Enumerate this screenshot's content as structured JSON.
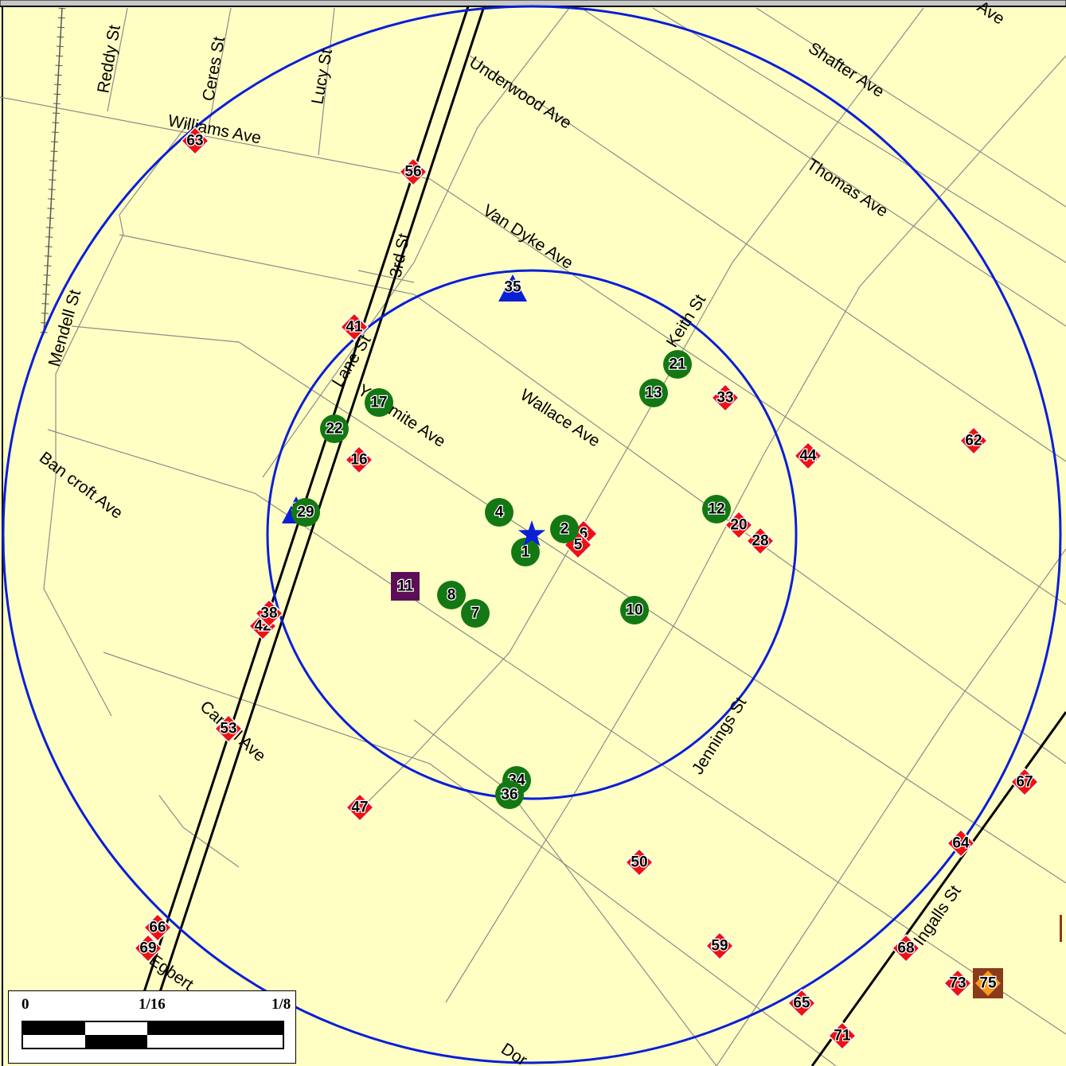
{
  "streets": {
    "reddy": "Reddy St",
    "ceres": "Ceres St",
    "lucy": "Lucy St",
    "williams": "Williams Ave",
    "underwood": "Underwood Ave",
    "shafter": "Shafter Ave",
    "ave_top": "Ave",
    "thomas": "Thomas Ave",
    "vandyke": "Van Dyke Ave",
    "third": "3rd St",
    "mendell": "Mendell St",
    "keith": "Keith St",
    "lane": "Lane St",
    "yosemite": "Yosemite Ave",
    "wallace": "Wallace Ave",
    "bancroft": "Ban croft Ave",
    "carroll": "Carroll Ave",
    "jennings": "Jennings St",
    "ingalls": "Ingalls St",
    "egbert": "Egbert",
    "dor": "Dor"
  },
  "markers": {
    "green": [
      {
        "n": "21",
        "color": "#137813"
      },
      {
        "n": "13",
        "color": "#137813"
      },
      {
        "n": "17",
        "color": "#137813"
      },
      {
        "n": "22",
        "color": "#137813"
      },
      {
        "n": "29",
        "color": "#137813"
      },
      {
        "n": "4",
        "color": "#137813"
      },
      {
        "n": "2",
        "color": "#137813"
      },
      {
        "n": "1",
        "color": "#137813"
      },
      {
        "n": "12",
        "color": "#137813"
      },
      {
        "n": "8",
        "color": "#137813"
      },
      {
        "n": "7",
        "color": "#137813"
      },
      {
        "n": "10",
        "color": "#137813"
      },
      {
        "n": "34",
        "color": "#137813"
      },
      {
        "n": "36",
        "color": "#137813"
      }
    ],
    "red": [
      {
        "n": "63"
      },
      {
        "n": "56"
      },
      {
        "n": "41"
      },
      {
        "n": "16"
      },
      {
        "n": "33"
      },
      {
        "n": "44"
      },
      {
        "n": "62"
      },
      {
        "n": "6"
      },
      {
        "n": "5"
      },
      {
        "n": "20"
      },
      {
        "n": "28"
      },
      {
        "n": "42"
      },
      {
        "n": "38"
      },
      {
        "n": "53"
      },
      {
        "n": "47"
      },
      {
        "n": "50"
      },
      {
        "n": "59"
      },
      {
        "n": "67"
      },
      {
        "n": "64"
      },
      {
        "n": "68"
      },
      {
        "n": "66"
      },
      {
        "n": "69"
      },
      {
        "n": "65"
      },
      {
        "n": "71"
      },
      {
        "n": "73"
      }
    ],
    "triangles": [
      {
        "n": "35"
      },
      {
        "n": "3"
      }
    ],
    "purple_square": {
      "n": "11",
      "color": "#5c0f57"
    },
    "orange_diamond": {
      "n": "75"
    },
    "star": {
      "name": "center-star",
      "color": "#0a1fd6"
    }
  },
  "scale_bar": {
    "tick0": "0",
    "tick1": "1/16",
    "tick2": "1/8"
  },
  "colors": {
    "background": "#ffffc4",
    "ring": "#0a1fd6",
    "rail": "#000000",
    "street": "#8c8c8c"
  }
}
